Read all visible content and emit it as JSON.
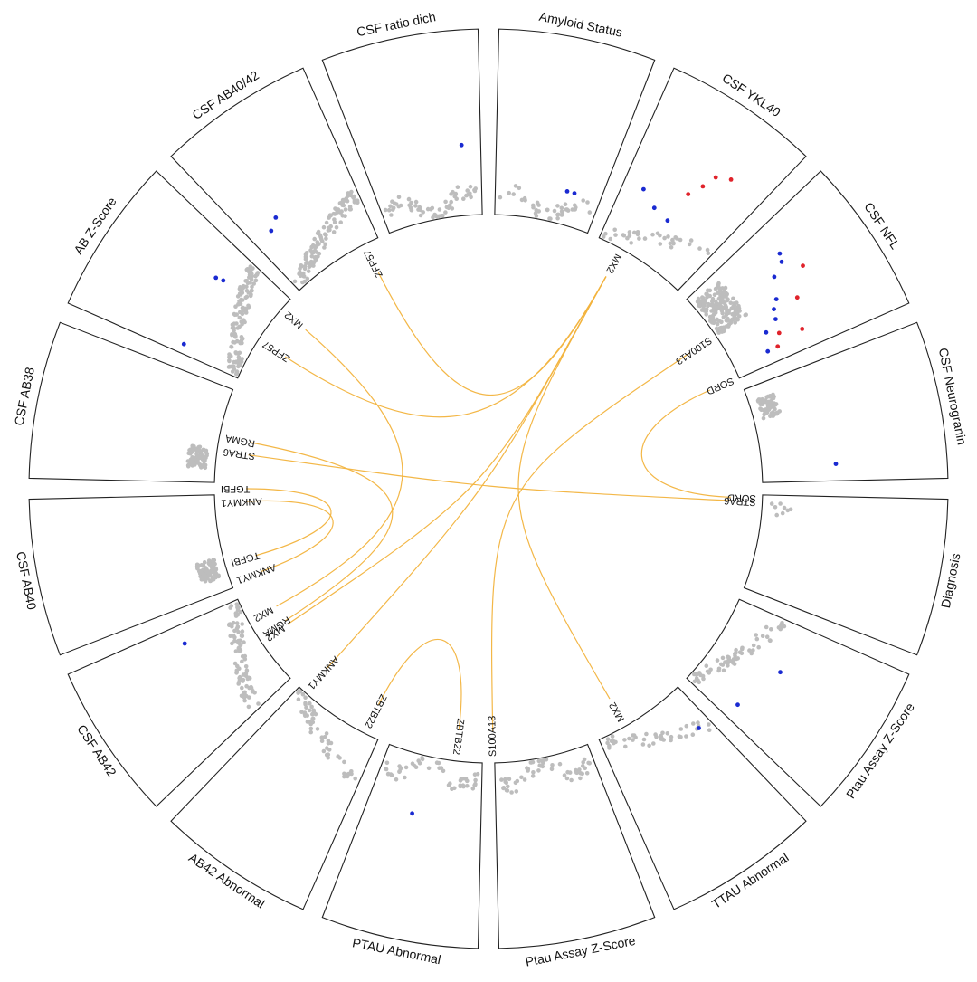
{
  "chart_data": {
    "type": "circos",
    "title": "",
    "sectors": [
      {
        "label": "Amyloid Status",
        "gray": 40,
        "shape": "flat",
        "highlights": [
          {
            "c": "blue",
            "r": 0.82,
            "t": 0.68
          },
          {
            "c": "blue",
            "r": 0.82,
            "t": 0.75
          }
        ]
      },
      {
        "label": "CSF YKL40",
        "gray": 35,
        "shape": "rising",
        "highlights": [
          {
            "c": "red",
            "r": 0.36,
            "t": 0.72
          },
          {
            "c": "red",
            "r": 0.4,
            "t": 0.62
          },
          {
            "c": "red",
            "r": 0.48,
            "t": 0.58
          },
          {
            "c": "red",
            "r": 0.56,
            "t": 0.52
          },
          {
            "c": "blue",
            "r": 0.66,
            "t": 0.18
          },
          {
            "c": "blue",
            "r": 0.72,
            "t": 0.34
          },
          {
            "c": "blue",
            "r": 0.74,
            "t": 0.5
          }
        ]
      },
      {
        "label": "CSF NFL",
        "gray": 170,
        "shape": "spread",
        "highlights": [
          {
            "c": "red",
            "r": 0.4,
            "t": 0.42
          },
          {
            "c": "red",
            "r": 0.52,
            "t": 0.6
          },
          {
            "c": "red",
            "r": 0.58,
            "t": 0.84
          },
          {
            "c": "red",
            "r": 0.7,
            "t": 0.78
          },
          {
            "c": "red",
            "r": 0.74,
            "t": 0.88
          },
          {
            "c": "blue",
            "r": 0.46,
            "t": 0.24
          },
          {
            "c": "blue",
            "r": 0.48,
            "t": 0.3
          },
          {
            "c": "blue",
            "r": 0.56,
            "t": 0.36
          },
          {
            "c": "blue",
            "r": 0.62,
            "t": 0.52
          },
          {
            "c": "blue",
            "r": 0.66,
            "t": 0.58
          },
          {
            "c": "blue",
            "r": 0.68,
            "t": 0.66
          },
          {
            "c": "blue",
            "r": 0.76,
            "t": 0.72
          },
          {
            "c": "blue",
            "r": 0.8,
            "t": 0.88
          }
        ]
      },
      {
        "label": "CSF Neurogranin",
        "gray": 70,
        "shape": "column",
        "highlights": [
          {
            "c": "blue",
            "r": 0.6,
            "t": 0.86
          }
        ]
      },
      {
        "label": "Diagnosis",
        "gray": 8,
        "shape": "sparse",
        "highlights": []
      },
      {
        "label": "Ptau Assay Z-Score",
        "gray": 65,
        "shape": "falling",
        "highlights": [
          {
            "c": "blue",
            "r": 0.62,
            "t": 0.42
          },
          {
            "c": "blue",
            "r": 0.7,
            "t": 0.86
          }
        ]
      },
      {
        "label": "TTAU Abnormal",
        "gray": 45,
        "shape": "falling",
        "highlights": [
          {
            "c": "blue",
            "r": 0.76,
            "t": 0.12
          }
        ]
      },
      {
        "label": "Ptau Assay Z-Score",
        "gray": 55,
        "shape": "flat",
        "highlights": []
      },
      {
        "label": "PTAU Abnormal",
        "gray": 50,
        "shape": "flat",
        "highlights": [
          {
            "c": "blue",
            "r": 0.68,
            "t": 0.6
          }
        ]
      },
      {
        "label": "AB42 Abnormal",
        "gray": 55,
        "shape": "falling",
        "highlights": []
      },
      {
        "label": "CSF AB42",
        "gray": 90,
        "shape": "falling",
        "highlights": [
          {
            "c": "blue",
            "r": 0.64,
            "t": 0.84
          }
        ]
      },
      {
        "label": "CSF AB40",
        "gray": 80,
        "shape": "column",
        "highlights": []
      },
      {
        "label": "CSF AB38",
        "gray": 75,
        "shape": "column",
        "highlights": []
      },
      {
        "label": "AB Z-Score",
        "gray": 130,
        "shape": "rising",
        "highlights": [
          {
            "c": "blue",
            "r": 0.66,
            "t": 0.08
          },
          {
            "c": "blue",
            "r": 0.62,
            "t": 0.7
          },
          {
            "c": "blue",
            "r": 0.66,
            "t": 0.72
          }
        ]
      },
      {
        "label": "CSF AB40/42",
        "gray": 120,
        "shape": "rising",
        "highlights": [
          {
            "c": "blue",
            "r": 0.62,
            "t": 0.28
          },
          {
            "c": "blue",
            "r": 0.66,
            "t": 0.18
          }
        ]
      },
      {
        "label": "CSF ratio dich",
        "gray": 60,
        "shape": "flat",
        "highlights": [
          {
            "c": "blue",
            "r": 0.62,
            "t": 0.84
          }
        ]
      }
    ],
    "links": [
      {
        "from": {
          "gene": "MX2",
          "angle": 29
        },
        "to": {
          "gene": "MX2",
          "angle": 150
        }
      },
      {
        "from": {
          "gene": "MX2",
          "angle": 29
        },
        "to": {
          "gene": "MX2",
          "angle": 236
        }
      },
      {
        "from": {
          "gene": "MX2",
          "angle": 29
        },
        "to": {
          "gene": "ZFP57",
          "angle": 303
        }
      },
      {
        "from": {
          "gene": "MX2",
          "angle": 29
        },
        "to": {
          "gene": "ANKMY1",
          "angle": 222
        }
      },
      {
        "from": {
          "gene": "MX2",
          "angle": 29
        },
        "to": {
          "gene": "ZFP57",
          "angle": 333
        }
      },
      {
        "from": {
          "gene": "S100A13",
          "angle": 56
        },
        "to": {
          "gene": "S100A13",
          "angle": 179
        }
      },
      {
        "from": {
          "gene": "SORD",
          "angle": 66
        },
        "to": {
          "gene": "SORD",
          "angle": 92
        }
      },
      {
        "from": {
          "gene": "STRA6",
          "angle": 92.8
        },
        "to": {
          "gene": "STRA6",
          "angle": 278
        }
      },
      {
        "from": {
          "gene": "RGMA",
          "angle": 281
        },
        "to": {
          "gene": "RGMA",
          "angle": 237
        }
      },
      {
        "from": {
          "gene": "TGFBI",
          "angle": 270
        },
        "to": {
          "gene": "TGFBI",
          "angle": 254
        }
      },
      {
        "from": {
          "gene": "ANKMY1",
          "angle": 267
        },
        "to": {
          "gene": "ANKMY1",
          "angle": 250
        }
      },
      {
        "from": {
          "gene": "MX2",
          "angle": 311
        },
        "to": {
          "gene": "MX2",
          "angle": 241
        }
      },
      {
        "from": {
          "gene": "ZBTB22",
          "angle": 207
        },
        "to": {
          "gene": "ZBTB22",
          "angle": 187
        }
      }
    ]
  }
}
